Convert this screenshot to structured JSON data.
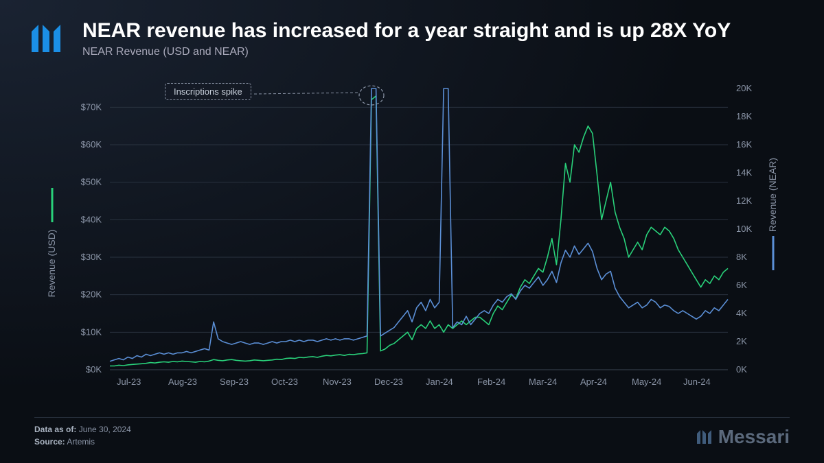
{
  "header": {
    "title": "NEAR revenue has increased for a year straight and is up 28X YoY",
    "subtitle": "NEAR Revenue (USD and NEAR)"
  },
  "footer": {
    "date_label": "Data as of:",
    "date_value": "June 30, 2024",
    "source_label": "Source:",
    "source_value": "Artemis",
    "watermark": "Messari"
  },
  "annotation": {
    "label": "Inscriptions spike"
  },
  "chart": {
    "type": "line",
    "background_color": "#0d131b",
    "grid_color": "#2a3340",
    "x_labels": [
      "Jul-23",
      "Aug-23",
      "Sep-23",
      "Oct-23",
      "Nov-23",
      "Dec-23",
      "Jan-24",
      "Feb-24",
      "Mar-24",
      "Apr-24",
      "May-24",
      "Jun-24"
    ],
    "y_left": {
      "label": "Revenue (USD)",
      "ticks": [
        "$0K",
        "$10K",
        "$20K",
        "$30K",
        "$40K",
        "$50K",
        "$60K",
        "$70K"
      ],
      "min": 0,
      "max": 75
    },
    "y_right": {
      "label": "Revenue (NEAR)",
      "ticks": [
        "0K",
        "2K",
        "4K",
        "6K",
        "8K",
        "10K",
        "12K",
        "14K",
        "16K",
        "18K",
        "20K"
      ],
      "min": 0,
      "max": 20
    },
    "series": [
      {
        "name": "Revenue (USD)",
        "axis": "left",
        "color": "#29d17a",
        "line_width": 1.6,
        "data": [
          1,
          1,
          1.2,
          1.1,
          1.3,
          1.4,
          1.5,
          1.6,
          1.7,
          1.9,
          1.8,
          2.0,
          2.1,
          2.0,
          2.2,
          2.1,
          2.3,
          2.2,
          2.1,
          2.0,
          2.2,
          2.1,
          2.3,
          2.7,
          2.5,
          2.4,
          2.6,
          2.7,
          2.5,
          2.4,
          2.3,
          2.4,
          2.6,
          2.5,
          2.4,
          2.5,
          2.6,
          2.8,
          2.7,
          3.0,
          3.1,
          3.0,
          3.3,
          3.2,
          3.4,
          3.5,
          3.3,
          3.6,
          3.8,
          3.7,
          3.9,
          4.0,
          3.8,
          4.1,
          4.0,
          4.2,
          4.3,
          4.5,
          72,
          73,
          5.0,
          5.5,
          6.5,
          7,
          8,
          9,
          10,
          8,
          11,
          12,
          11,
          13,
          11,
          12,
          10,
          12,
          11,
          12,
          13,
          12,
          13,
          14,
          14,
          13,
          12,
          15,
          17,
          16,
          18,
          20,
          19,
          22,
          24,
          23,
          25,
          27,
          26,
          30,
          35,
          28,
          40,
          55,
          50,
          60,
          58,
          62,
          65,
          63,
          52,
          40,
          45,
          50,
          42,
          38,
          35,
          30,
          32,
          34,
          32,
          36,
          38,
          37,
          36,
          38,
          37,
          35,
          32,
          30,
          28,
          26,
          24,
          22,
          24,
          23,
          25,
          24,
          26,
          27
        ]
      },
      {
        "name": "Revenue (NEAR)",
        "axis": "right",
        "color": "#5b8fd6",
        "line_width": 1.6,
        "data": [
          0.6,
          0.7,
          0.8,
          0.7,
          0.9,
          0.8,
          1.0,
          0.9,
          1.1,
          1.0,
          1.1,
          1.2,
          1.1,
          1.2,
          1.1,
          1.2,
          1.2,
          1.3,
          1.2,
          1.3,
          1.4,
          1.5,
          1.4,
          3.4,
          2.2,
          2.0,
          1.9,
          1.8,
          1.9,
          2.0,
          1.9,
          1.8,
          1.9,
          1.9,
          1.8,
          1.9,
          2.0,
          1.9,
          2.0,
          2.0,
          2.1,
          2.0,
          2.1,
          2.0,
          2.1,
          2.1,
          2.0,
          2.1,
          2.2,
          2.1,
          2.2,
          2.1,
          2.2,
          2.2,
          2.1,
          2.2,
          2.3,
          2.4,
          20,
          20,
          2.4,
          2.6,
          2.8,
          3.0,
          3.4,
          3.8,
          4.2,
          3.4,
          4.4,
          4.8,
          4.2,
          5.0,
          4.4,
          4.8,
          20,
          20,
          3.0,
          3.4,
          3.2,
          3.8,
          3.2,
          3.6,
          4.0,
          4.2,
          4.0,
          4.6,
          5.0,
          4.8,
          5.2,
          5.4,
          5.0,
          5.6,
          6.0,
          5.8,
          6.2,
          6.6,
          6.0,
          6.4,
          7.0,
          6.2,
          7.6,
          8.5,
          8.0,
          8.8,
          8.2,
          8.6,
          9.0,
          8.4,
          7.2,
          6.4,
          6.8,
          7.0,
          5.8,
          5.2,
          4.8,
          4.4,
          4.6,
          4.8,
          4.4,
          4.6,
          5.0,
          4.8,
          4.4,
          4.6,
          4.5,
          4.2,
          4.0,
          4.2,
          4.0,
          3.8,
          3.6,
          3.8,
          4.2,
          4.0,
          4.4,
          4.2,
          4.6,
          5.0
        ]
      }
    ]
  }
}
